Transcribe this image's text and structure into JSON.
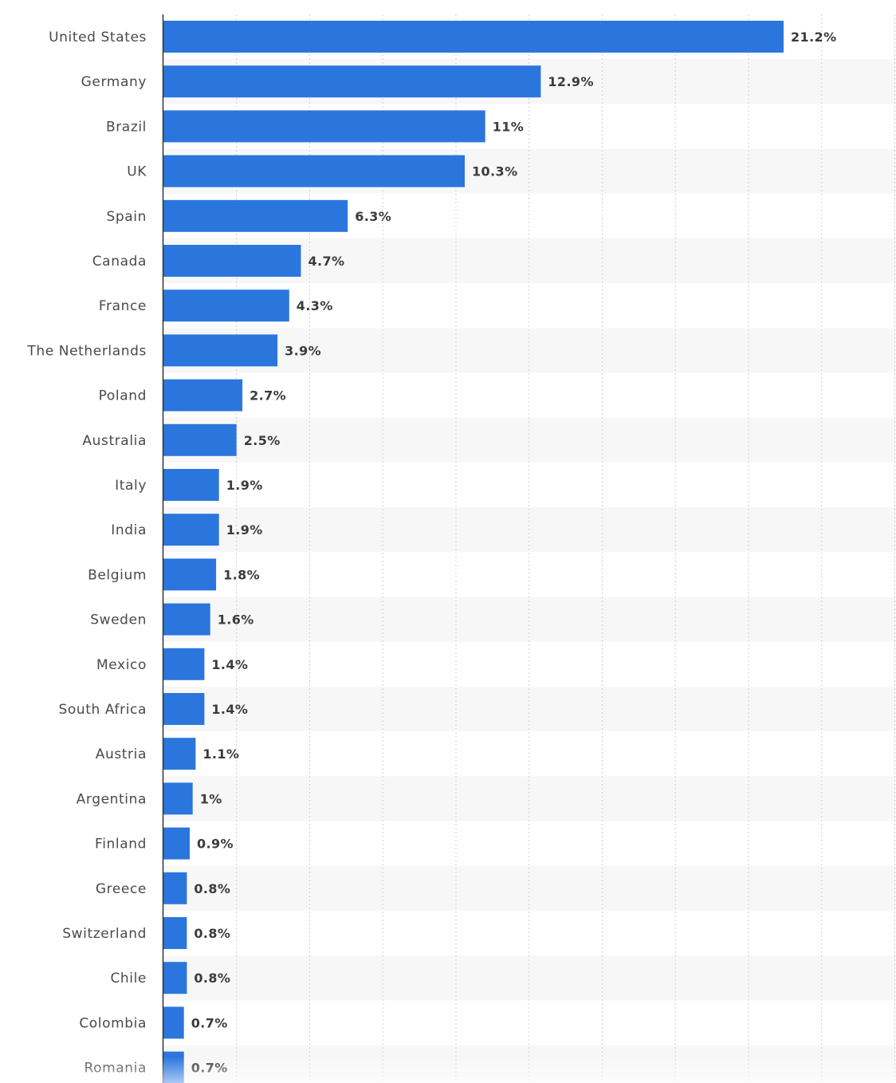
{
  "chart_data": {
    "type": "bar",
    "orientation": "horizontal",
    "title": "",
    "xlabel": "",
    "ylabel": "",
    "categories": [
      "United States",
      "Germany",
      "Brazil",
      "UK",
      "Spain",
      "Canada",
      "France",
      "The Netherlands",
      "Poland",
      "Australia",
      "Italy",
      "India",
      "Belgium",
      "Sweden",
      "Mexico",
      "South Africa",
      "Austria",
      "Argentina",
      "Finland",
      "Greece",
      "Switzerland",
      "Chile",
      "Colombia",
      "Romania"
    ],
    "values": [
      21.2,
      12.9,
      11,
      10.3,
      6.3,
      4.7,
      4.3,
      3.9,
      2.7,
      2.5,
      1.9,
      1.9,
      1.8,
      1.6,
      1.4,
      1.4,
      1.1,
      1,
      0.9,
      0.8,
      0.8,
      0.8,
      0.7,
      0.7
    ],
    "value_labels": [
      "21.2%",
      "12.9%",
      "11%",
      "10.3%",
      "6.3%",
      "4.7%",
      "4.3%",
      "3.9%",
      "2.7%",
      "2.5%",
      "1.9%",
      "1.9%",
      "1.8%",
      "1.6%",
      "1.4%",
      "1.4%",
      "1.1%",
      "1%",
      "0.9%",
      "0.8%",
      "0.8%",
      "0.8%",
      "0.7%",
      "0.7%"
    ],
    "xlim": [
      0,
      25
    ],
    "grid": true,
    "bar_color": "#2a76dd",
    "alt_row_color": "#f7f7f7",
    "gridline_color": "#cfcfcf"
  }
}
